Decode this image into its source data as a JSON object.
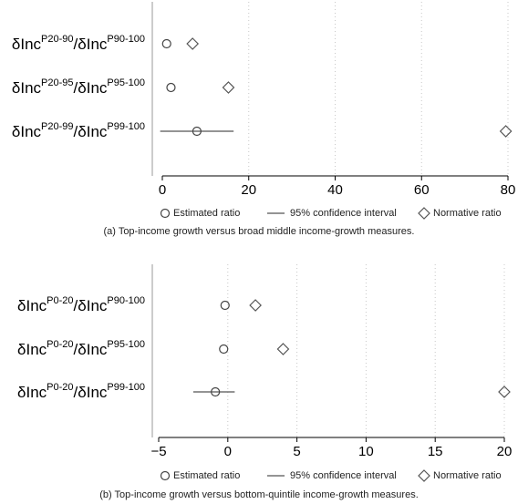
{
  "chart_data": [
    {
      "type": "scatter",
      "title": "",
      "caption": "(a) Top-income growth versus broad middle income-growth measures.",
      "xlim": [
        -2,
        82
      ],
      "xticks": [
        "0",
        "20",
        "40",
        "60",
        "80"
      ],
      "xtick_values": [
        0,
        20,
        40,
        60,
        80
      ],
      "grid": true,
      "rows": [
        {
          "label_base": "δInc",
          "sup1": "P20-90",
          "mid": "/δInc",
          "sup2": "P90-100",
          "estimate": 1.0,
          "ci": null,
          "normative": 7.0
        },
        {
          "label_base": "δInc",
          "sup1": "P20-95",
          "mid": "/δInc",
          "sup2": "P95-100",
          "estimate": 2.0,
          "ci": null,
          "normative": 15.3
        },
        {
          "label_base": "δInc",
          "sup1": "P20-99",
          "mid": "/δInc",
          "sup2": "P99-100",
          "estimate": 8.0,
          "ci": [
            -0.5,
            16.5
          ],
          "normative": 79.5
        }
      ],
      "legend": {
        "estimated": "Estimated ratio",
        "ci": "95% confidence interval",
        "normative": "Normative ratio"
      }
    },
    {
      "type": "scatter",
      "title": "",
      "caption": "(b) Top-income growth versus bottom-quintile income-growth measures.",
      "xlim": [
        -5.3,
        20.5
      ],
      "xticks": [
        "−5",
        "0",
        "5",
        "10",
        "15",
        "20"
      ],
      "xtick_values": [
        -5,
        0,
        5,
        10,
        15,
        20
      ],
      "grid": true,
      "rows": [
        {
          "label_base": "δInc",
          "sup1": "P0-20",
          "mid": "/δInc",
          "sup2": "P90-100",
          "estimate": -0.2,
          "ci": null,
          "normative": 2.0
        },
        {
          "label_base": "δInc",
          "sup1": "P0-20",
          "mid": "/δInc",
          "sup2": "P95-100",
          "estimate": -0.3,
          "ci": null,
          "normative": 4.0
        },
        {
          "label_base": "δInc",
          "sup1": "P0-20",
          "mid": "/δInc",
          "sup2": "P99-100",
          "estimate": -0.9,
          "ci": [
            -2.5,
            0.5
          ],
          "normative": 20.0
        }
      ],
      "legend": {
        "estimated": "Estimated ratio",
        "ci": "95% confidence interval",
        "normative": "Normative ratio"
      }
    }
  ]
}
